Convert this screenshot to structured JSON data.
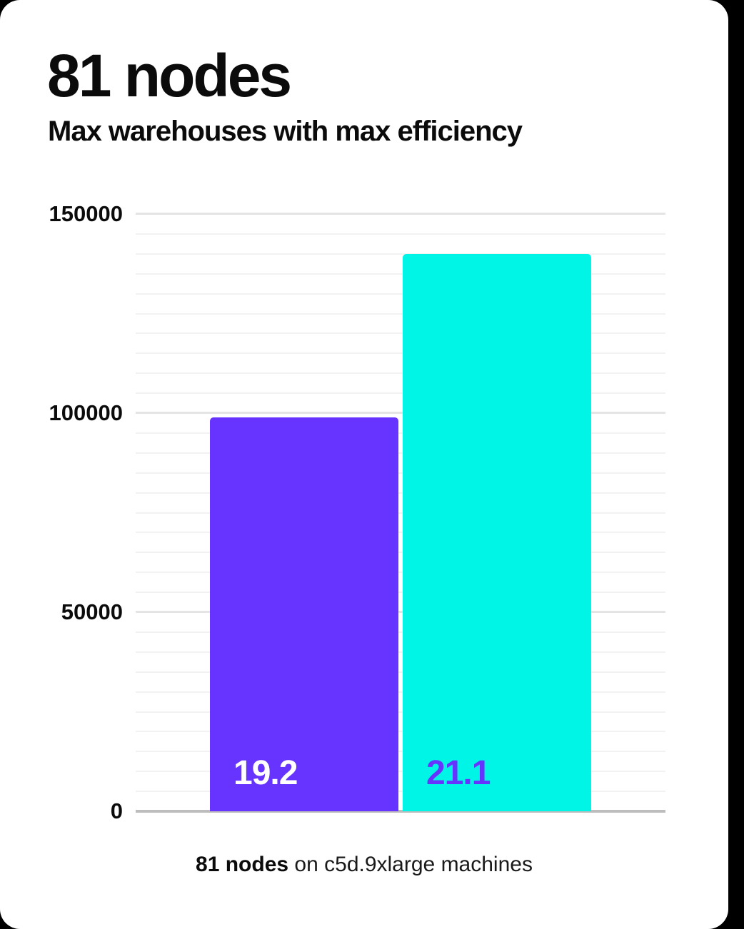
{
  "header": {
    "title": "81 nodes",
    "subtitle": "Max warehouses with max efficiency"
  },
  "caption": {
    "bold": "81 nodes",
    "rest": " on c5d.9xlarge machines"
  },
  "colors": {
    "background": "#000000",
    "card": "#ffffff",
    "text": "#0b0b0b",
    "bar_purple": "#6633ff",
    "bar_cyan": "#00f5e6",
    "grid_minor": "#f2f2f2",
    "grid_major": "#e4e4e4",
    "axis_line": "#bdbdbd"
  },
  "chart_data": {
    "type": "bar",
    "title": "81 nodes",
    "subtitle": "Max warehouses with max efficiency",
    "categories": [
      "19.2",
      "21.1"
    ],
    "values": [
      99000,
      140000
    ],
    "bar_labels": [
      "19.2",
      "21.1"
    ],
    "bar_colors": [
      "#6633ff",
      "#00f5e6"
    ],
    "bar_label_colors": [
      "#ffffff",
      "#6633ff"
    ],
    "ylim": [
      0,
      150000
    ],
    "ytick_values": [
      0,
      50000,
      100000,
      150000
    ],
    "ytick_labels": [
      "0",
      "50000",
      "100000",
      "150000"
    ],
    "major_grid_step": 50000,
    "minor_grid_step": 5000,
    "xlabel": "81 nodes on c5d.9xlarge machines",
    "ylabel": "",
    "grid": "horizontal-only",
    "legend": "none"
  }
}
